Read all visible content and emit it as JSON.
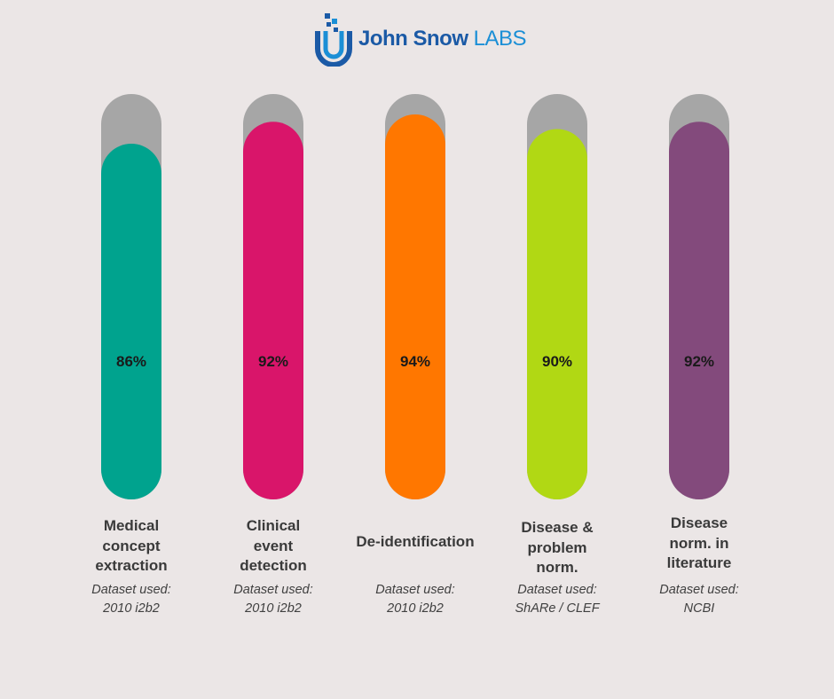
{
  "brand": {
    "name_part1": "John Snow ",
    "name_part2": "LABS",
    "colors": {
      "dark_blue": "#1b5aa6",
      "light_blue": "#1b8fd6"
    }
  },
  "chart_data": {
    "type": "bar",
    "title": "",
    "ylim": [
      0,
      100
    ],
    "categories": [
      "Medical concept extraction",
      "Clinical event detection",
      "De-identification",
      "Disease & problem norm.",
      "Disease norm. in literature"
    ],
    "values": [
      86,
      92,
      94,
      90,
      92
    ],
    "value_labels": [
      "86%",
      "92%",
      "94%",
      "90%",
      "92%"
    ],
    "colors": [
      "#00a38e",
      "#d9156a",
      "#ff7700",
      "#b1d814",
      "#834a7c"
    ],
    "track_color": "#a6a6a6",
    "bars": [
      {
        "label_lines": [
          "Medical",
          "concept",
          "extraction"
        ],
        "dataset_caption": "Dataset used:",
        "dataset_name": "2010 i2b2"
      },
      {
        "label_lines": [
          "Clinical",
          "event",
          "detection"
        ],
        "dataset_caption": "Dataset used:",
        "dataset_name": "2010 i2b2"
      },
      {
        "label_lines": [
          "De-identification"
        ],
        "dataset_caption": "Dataset used:",
        "dataset_name": "2010 i2b2"
      },
      {
        "label_lines": [
          "Disease &",
          "problem",
          "norm."
        ],
        "dataset_caption": "Dataset used:",
        "dataset_name": "ShARe / CLEF"
      },
      {
        "label_lines": [
          "Disease",
          "norm. in",
          "literature"
        ],
        "dataset_caption": "Dataset used:",
        "dataset_name": "NCBI"
      }
    ]
  }
}
